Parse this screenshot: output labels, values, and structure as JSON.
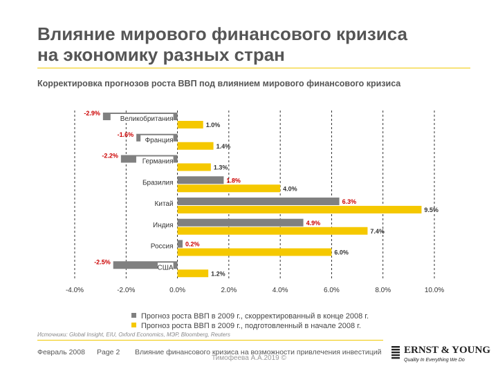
{
  "slide": {
    "title_line1": "Влияние мирового финансового кризиса",
    "title_line2": "на экономику разных стран",
    "subtitle": "Корректировка прогнозов роста ВВП под влиянием мирового финансового кризиса"
  },
  "chart_data": {
    "type": "bar",
    "orientation": "horizontal",
    "title": "Корректировка прогнозов роста ВВП под влиянием мирового финансового кризиса",
    "categories": [
      "Великобритания",
      "Франция",
      "Германия",
      "Бразилия",
      "Китай",
      "Индия",
      "Россия",
      "США"
    ],
    "series": [
      {
        "name": "Прогноз роста ВВП в 2009 г., скорректированный в конце 2008 г.",
        "color": "#808080",
        "label_color": "#cc0000",
        "values": [
          -2.9,
          -1.6,
          -2.2,
          1.8,
          6.3,
          4.9,
          0.2,
          -2.5
        ]
      },
      {
        "name": "Прогноз роста ВВП в 2009 г., подготовленный в начале 2008 г.",
        "color": "#f5c800",
        "label_color": "#333333",
        "values": [
          1.0,
          1.4,
          1.3,
          4.0,
          9.5,
          7.4,
          6.0,
          1.2
        ]
      }
    ],
    "xlim": [
      -4,
      10
    ],
    "xticks": [
      -4,
      -2,
      0,
      2,
      4,
      6,
      8,
      10
    ],
    "xtick_labels": [
      "-4.0%",
      "-2.0%",
      "0.0%",
      "2.0%",
      "4.0%",
      "6.0%",
      "8.0%",
      "10.0%"
    ],
    "grid": true,
    "legend_position": "bottom"
  },
  "legend": [
    {
      "label": "Прогноз роста ВВП в 2009 г., скорректированный в конце 2008 г.",
      "color": "#808080"
    },
    {
      "label": "Прогноз роста ВВП в 2009 г., подготовленный в начале 2008 г.",
      "color": "#f5c800"
    }
  ],
  "source": "Источники: Global Insight, EIU, Oxford Economics, МЭР, Bloomberg, Reuters",
  "footer": {
    "date": "Февраль 2008",
    "page": "Page 2",
    "doc_title": "Влияние финансового кризиса на возможности привлечения инвестиций",
    "watermark": "Тимофеева А.А.2019 ©",
    "logo_name": "ERNST & YOUNG",
    "logo_slogan": "Quality In Everything We Do"
  },
  "colors": {
    "accent": "#f0c800",
    "title": "#555555"
  }
}
